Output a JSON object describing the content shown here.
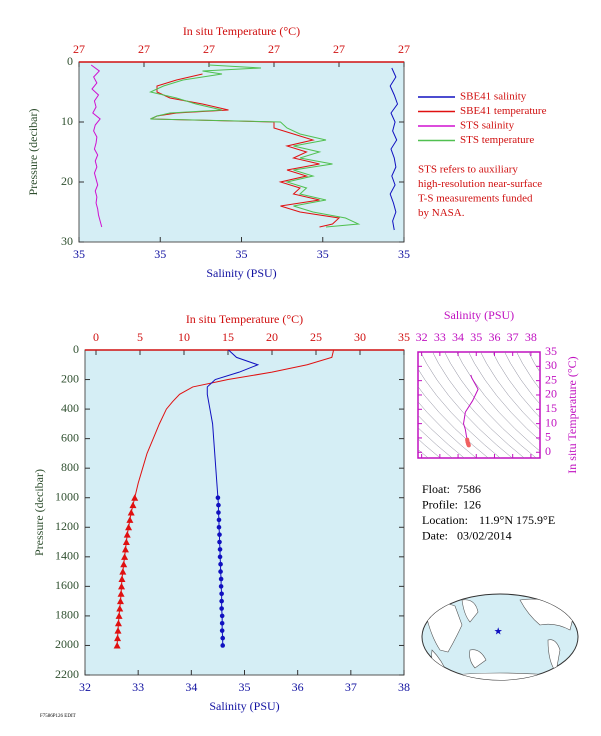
{
  "chart_data": [
    {
      "type": "profile",
      "title": "In situ Temperature (°C)",
      "xlabel": "Salinity (PSU)",
      "ylabel": "Pressure (decibar)",
      "xlim": [
        34.9,
        35.3
      ],
      "xticks": [
        {
          "value": 34.9,
          "label": "35"
        },
        {
          "value": 35.0,
          "label": "35"
        },
        {
          "value": 35.1,
          "label": "35"
        },
        {
          "value": 35.2,
          "label": "35"
        },
        {
          "value": 35.3,
          "label": "35"
        }
      ],
      "x2lim": [
        26.8,
        27.3
      ],
      "x2ticks": [
        {
          "value": 26.8,
          "label": "27"
        },
        {
          "value": 26.9,
          "label": "27"
        },
        {
          "value": 27.0,
          "label": "27"
        },
        {
          "value": 27.1,
          "label": "27"
        },
        {
          "value": 27.2,
          "label": "27"
        },
        {
          "value": 27.3,
          "label": "27"
        }
      ],
      "ylim": [
        0,
        30
      ],
      "yticks": [
        0,
        10,
        20,
        30
      ],
      "y_inverted": true,
      "legend": true,
      "series": [
        {
          "name": "SBE41 salinity",
          "color": "#1010c0",
          "pressure": [
            1,
            2.5,
            4,
            5.5,
            7,
            8.5,
            10,
            11.5,
            13,
            14.5,
            16,
            17.5,
            19,
            20.5,
            22,
            23.5,
            25,
            26.5,
            28
          ],
          "values": [
            35.285,
            35.29,
            35.283,
            35.288,
            35.292,
            35.284,
            35.289,
            35.286,
            35.291,
            35.284,
            35.288,
            35.29,
            35.285,
            35.289,
            35.283,
            35.287,
            35.29,
            35.286,
            35.288
          ]
        },
        {
          "name": "SBE41 temperature",
          "color": "#e01010",
          "axis": "x2",
          "pressure": [
            2,
            3,
            4,
            5,
            6,
            7,
            8,
            8.5,
            9,
            9.5,
            10,
            11,
            12,
            13,
            14,
            15,
            16,
            17,
            18,
            19,
            20,
            21,
            22,
            23,
            24,
            25,
            26,
            27,
            27.5
          ],
          "values": [
            26.99,
            26.95,
            26.92,
            26.92,
            26.94,
            26.99,
            27.03,
            26.95,
            26.92,
            26.91,
            27.1,
            27.1,
            27.13,
            27.16,
            27.12,
            27.15,
            27.13,
            27.17,
            27.12,
            27.15,
            27.11,
            27.14,
            27.13,
            27.17,
            27.11,
            27.14,
            27.2,
            27.19,
            27.17
          ]
        },
        {
          "name": "STS salinity",
          "color": "#d010d0",
          "pressure": [
            0.5,
            1.5,
            2.5,
            3.5,
            4.5,
            5.5,
            6.5,
            7.5,
            8.5,
            9.5,
            10.5,
            11.5,
            12.5,
            13.5,
            14.5,
            15.5,
            16.5,
            17.5,
            18.5,
            19.5,
            20.5,
            21.5,
            22.5,
            23.5,
            24.5,
            25.5,
            26.5,
            27.5
          ],
          "values": [
            34.915,
            34.925,
            34.918,
            34.922,
            34.916,
            34.924,
            34.919,
            34.921,
            34.917,
            34.926,
            34.92,
            34.918,
            34.922,
            34.921,
            34.919,
            34.923,
            34.92,
            34.922,
            34.919,
            34.921,
            34.923,
            34.92,
            34.922,
            34.921,
            34.923,
            34.924,
            34.926,
            34.928
          ]
        },
        {
          "name": "STS temperature",
          "color": "#50c050",
          "axis": "x2",
          "pressure": [
            0.5,
            1,
            1.5,
            2,
            3,
            4,
            5,
            6,
            7,
            8,
            8.5,
            9,
            9.5,
            10,
            11,
            12,
            13,
            14,
            15,
            16,
            17,
            18,
            19,
            20,
            21,
            22,
            23,
            24,
            25,
            26,
            27,
            27.5
          ],
          "values": [
            27.0,
            27.08,
            26.99,
            27.02,
            26.96,
            26.93,
            26.91,
            26.95,
            26.98,
            27.02,
            26.94,
            26.92,
            26.91,
            27.11,
            27.12,
            27.14,
            27.18,
            27.13,
            27.17,
            27.14,
            27.19,
            27.13,
            27.16,
            27.12,
            27.15,
            27.14,
            27.18,
            27.13,
            27.16,
            27.21,
            27.23,
            27.18
          ]
        }
      ],
      "note": [
        "STS refers to auxiliary",
        "high-resolution near-surface",
        "T-S measurements funded",
        "by NASA."
      ]
    },
    {
      "type": "profile",
      "title": "In situ Temperature (°C)",
      "xlabel": "Salinity (PSU)",
      "ylabel": "Pressure (decibar)",
      "xlim": [
        32,
        38
      ],
      "xticks": [
        32,
        33,
        34,
        35,
        36,
        37,
        38
      ],
      "x2lim": [
        -1.25,
        35
      ],
      "x2ticks": [
        0,
        5,
        10,
        15,
        20,
        25,
        30,
        35
      ],
      "ylim": [
        0,
        2200
      ],
      "yticks": [
        0,
        200,
        400,
        600,
        800,
        1000,
        1200,
        1400,
        1600,
        1800,
        2000,
        2200
      ],
      "y_inverted": true,
      "legend": false,
      "series": [
        {
          "color": "#e01010",
          "axis": "x2",
          "marker": "none",
          "pressure": [
            0,
            50,
            100,
            150,
            200,
            250,
            300,
            350,
            400,
            500,
            600,
            700,
            800,
            900,
            1000
          ],
          "values": [
            27.0,
            26.8,
            24,
            20,
            15,
            11,
            9.5,
            8.7,
            8,
            7.2,
            6.5,
            5.8,
            5.3,
            4.8,
            4.4
          ]
        },
        {
          "color": "#e01010",
          "axis": "x2",
          "marker": "triangle",
          "pressure": [
            1000,
            1050,
            1100,
            1150,
            1200,
            1250,
            1300,
            1350,
            1400,
            1450,
            1500,
            1550,
            1600,
            1650,
            1700,
            1750,
            1800,
            1850,
            1900,
            1950,
            2000
          ],
          "values": [
            4.4,
            4.2,
            4.0,
            3.85,
            3.7,
            3.55,
            3.45,
            3.35,
            3.25,
            3.15,
            3.05,
            2.95,
            2.9,
            2.85,
            2.78,
            2.7,
            2.62,
            2.55,
            2.5,
            2.45,
            2.4
          ]
        },
        {
          "color": "#1010c0",
          "marker": "none",
          "pressure": [
            0,
            50,
            100,
            150,
            200,
            250,
            300,
            400,
            500,
            600,
            700,
            800,
            900,
            1000
          ],
          "values": [
            34.7,
            34.85,
            35.25,
            34.9,
            34.45,
            34.3,
            34.3,
            34.35,
            34.4,
            34.42,
            34.44,
            34.46,
            34.48,
            34.5
          ]
        },
        {
          "color": "#1010c0",
          "marker": "dot",
          "pressure": [
            1000,
            1050,
            1100,
            1150,
            1200,
            1250,
            1300,
            1350,
            1400,
            1450,
            1500,
            1550,
            1600,
            1650,
            1700,
            1750,
            1800,
            1850,
            1900,
            1950,
            2000
          ],
          "values": [
            34.5,
            34.51,
            34.51,
            34.52,
            34.52,
            34.53,
            34.53,
            34.54,
            34.54,
            34.55,
            34.55,
            34.56,
            34.56,
            34.57,
            34.57,
            34.57,
            34.58,
            34.58,
            34.58,
            34.59,
            34.59
          ]
        }
      ]
    },
    {
      "type": "ts",
      "xlabel": "Salinity (PSU)",
      "ylabel": "In situ Temperature (°C)",
      "xlim": [
        31.8,
        38.5
      ],
      "xticks": [
        32,
        33,
        34,
        35,
        36,
        37,
        38
      ],
      "ylim": [
        -2,
        35
      ],
      "yticks": [
        0,
        5,
        10,
        15,
        20,
        25,
        30,
        35
      ],
      "series": [
        {
          "color": "#c010c0",
          "marker": "none",
          "x": [
            34.7,
            34.75,
            35.1,
            34.8,
            34.4,
            34.3,
            34.4,
            34.45,
            34.5
          ],
          "y": [
            27,
            26,
            22,
            18,
            14,
            10,
            8,
            6,
            4.4
          ]
        },
        {
          "color": "#f06060",
          "marker": "dot",
          "x": [
            34.5,
            34.51,
            34.52,
            34.53,
            34.54,
            34.55,
            34.56,
            34.57,
            34.58,
            34.59
          ],
          "y": [
            4.4,
            4.0,
            3.7,
            3.45,
            3.25,
            3.05,
            2.9,
            2.7,
            2.55,
            2.4
          ]
        }
      ]
    }
  ],
  "float_info": [
    {
      "label": "Float:",
      "value": "7586"
    },
    {
      "label": "Profile:",
      "value": "126"
    },
    {
      "label": "Location:",
      "value": "11.9°N  175.9°E"
    },
    {
      "label": "Date:",
      "value": "03/02/2014"
    }
  ],
  "map": {
    "lat": 11.9,
    "lon": 175.9
  }
}
